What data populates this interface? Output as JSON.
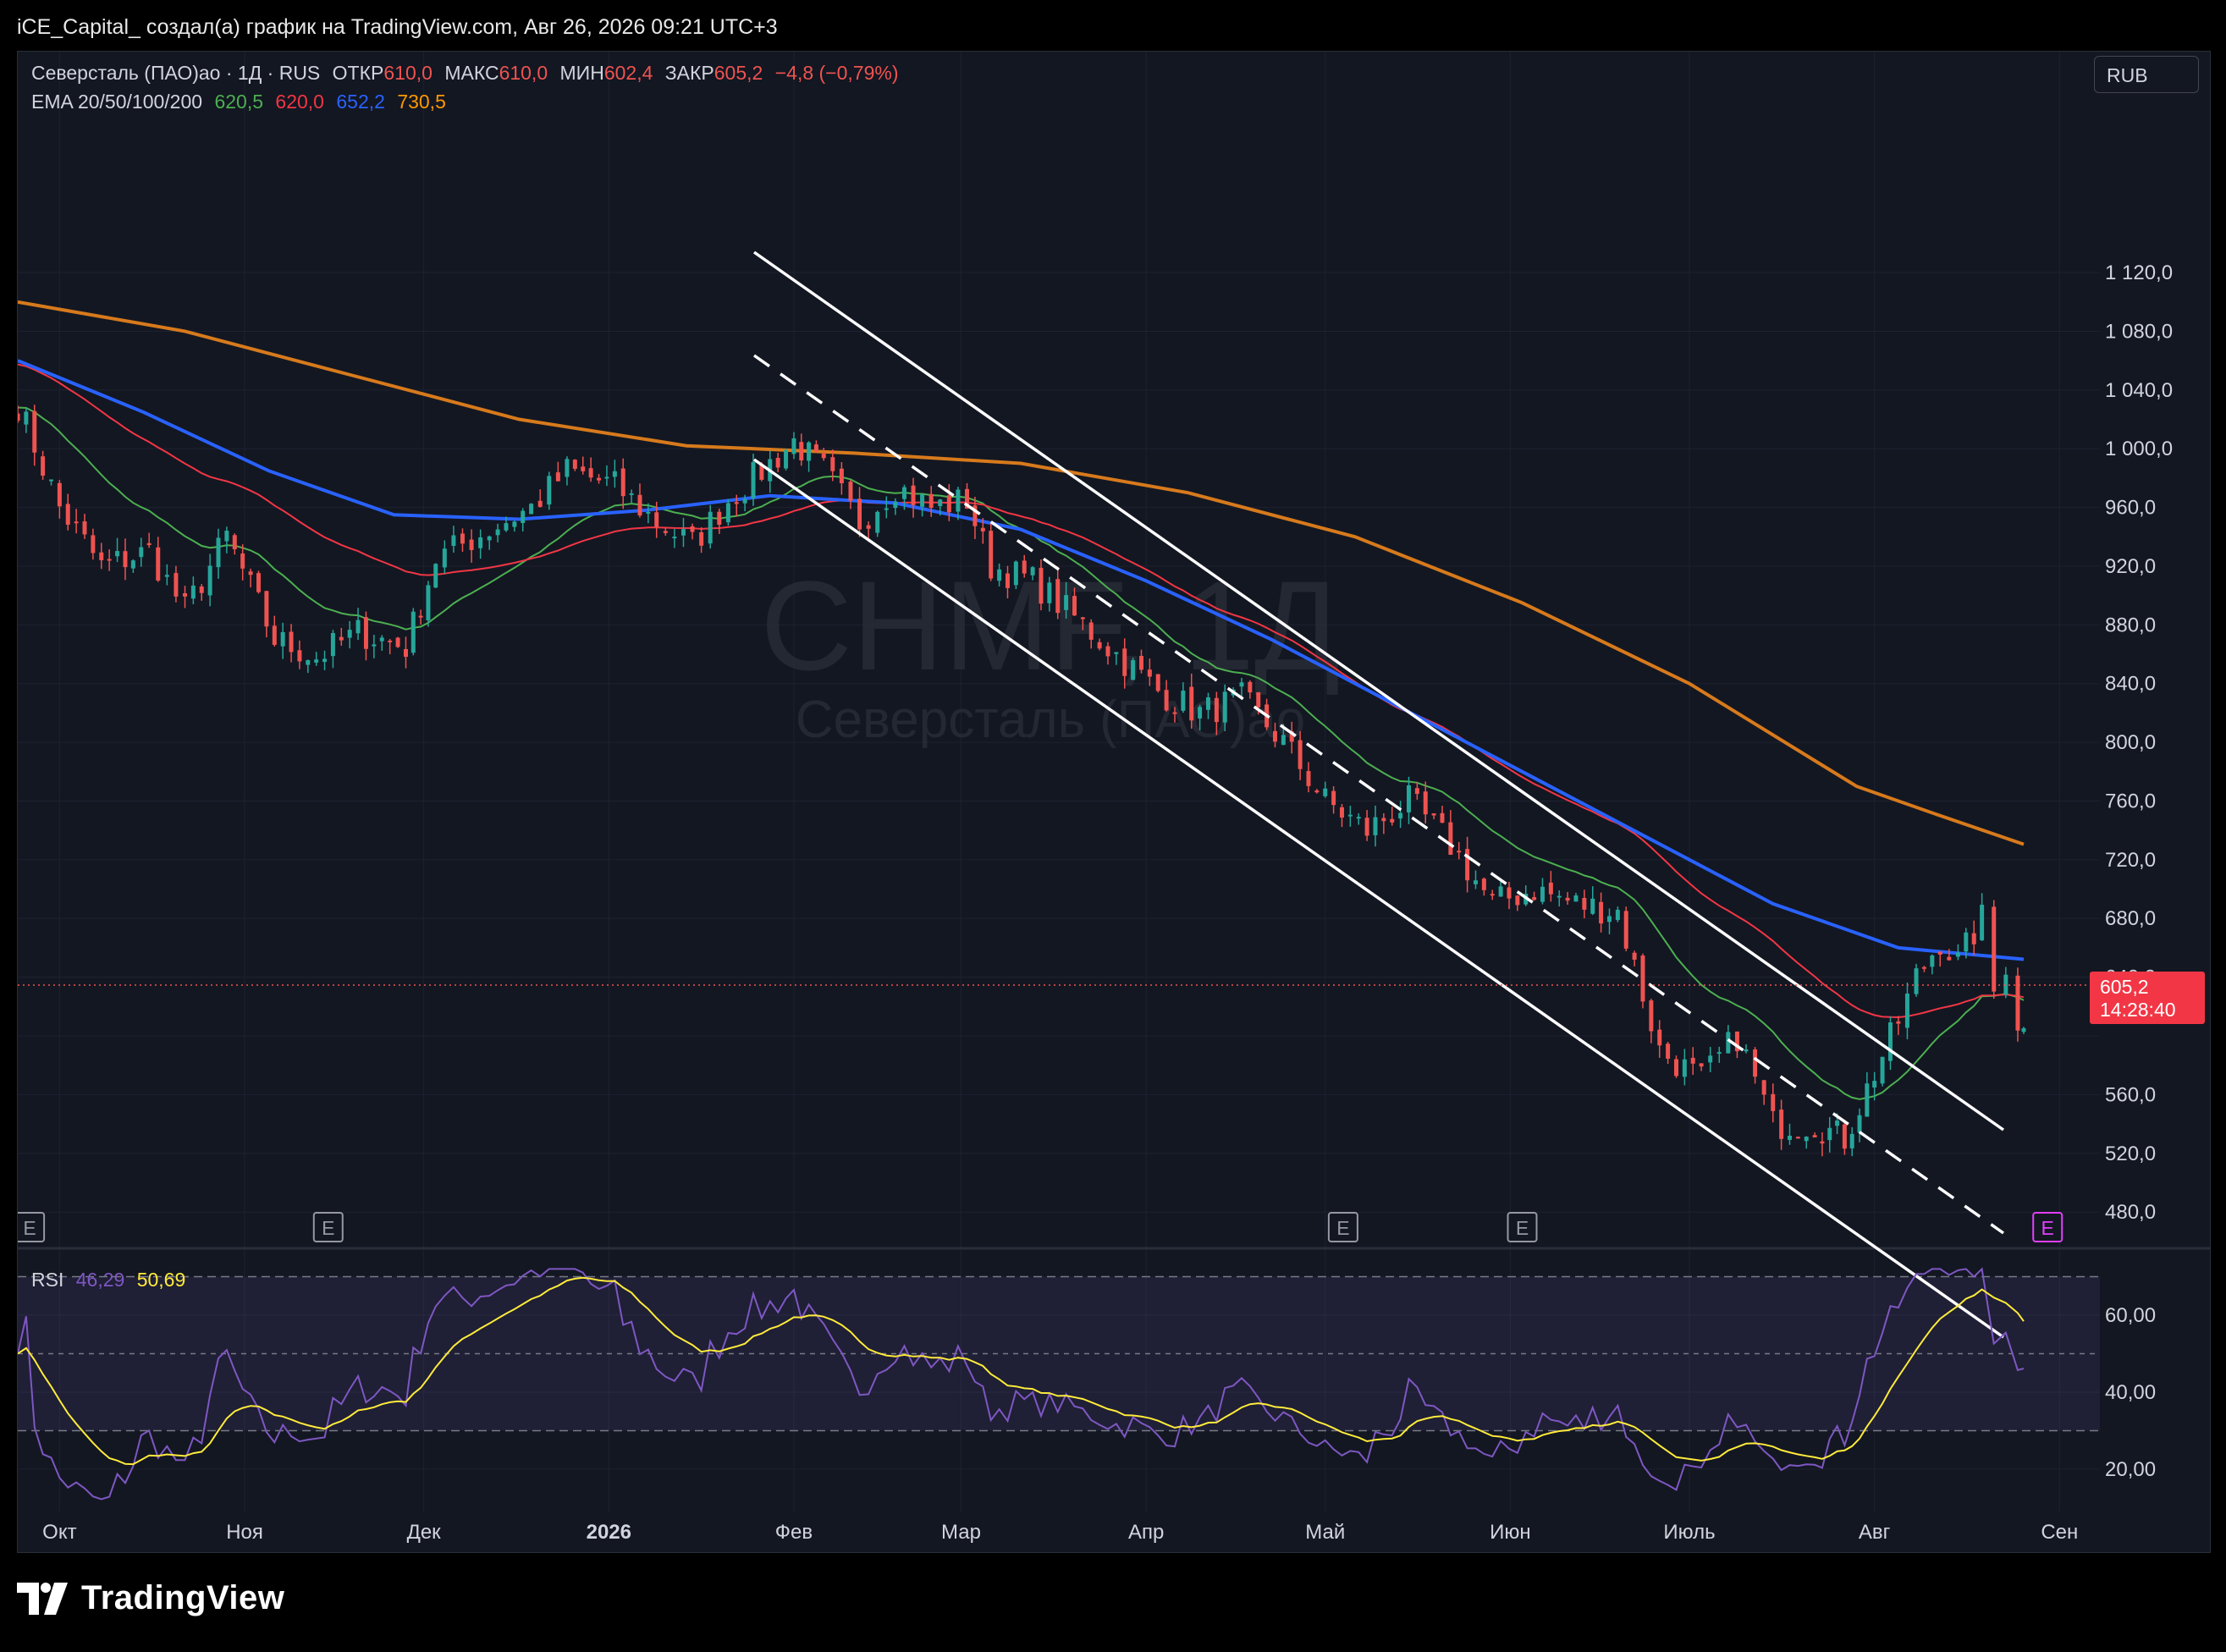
{
  "header": {
    "attribution": "iCE_Capital_ создал(а) график на TradingView.com, Авг 26, 2026 09:21 UTC+3"
  },
  "legend": {
    "symbol": "Северсталь (ПАО)ао · 1Д · RUS",
    "open_label": "ОТКР",
    "open": "610,0",
    "high_label": "МАКС",
    "high": "610,0",
    "low_label": "МИН",
    "low": "602,4",
    "close_label": "ЗАКР",
    "close": "605,2",
    "change": "−4,8 (−0,79%)",
    "ema_label": "EMA 20/50/100/200",
    "ema20": "620,5",
    "ema50": "620,0",
    "ema100": "652,2",
    "ema200": "730,5",
    "rsi_label": "RSI",
    "rsi": "46,29",
    "rsi_ma": "50,69"
  },
  "currency": "RUB",
  "watermark": {
    "ticker": "CHMF, 1Д",
    "name": "Северсталь (ПАО)ао"
  },
  "price_label": {
    "value": "605,2",
    "countdown": "14:28:40"
  },
  "earnings_marker": "E",
  "logo_text": "TradingView",
  "colors": {
    "background": "#131722",
    "up": "#26a69a",
    "down": "#ef5350",
    "ema20": "#4caf50",
    "ema50": "#f23645",
    "ema100": "#2962ff",
    "ema200": "#d77a1c",
    "rsi": "#7e57c2",
    "rsi_ma": "#ffeb3b",
    "channel": "#ffffff"
  },
  "chart_data": [
    {
      "type": "candlestick",
      "title": "Северсталь (ПАО)ао · 1Д · RUS",
      "y_axis_ticks": [
        "1 120,0",
        "1 080,0",
        "1 040,0",
        "1 000,0",
        "960,0",
        "920,0",
        "880,0",
        "840,0",
        "800,0",
        "760,0",
        "720,0",
        "680,0",
        "640,0",
        "600,0",
        "560,0",
        "520,0",
        "480,0"
      ],
      "x_axis_ticks": [
        "Окт",
        "Ноя",
        "Дек",
        "2026",
        "Фев",
        "Мар",
        "Апр",
        "Май",
        "Июн",
        "Июль",
        "Авг",
        "Сен"
      ],
      "ylim": [
        470,
        1130
      ],
      "price_path": [
        [
          "2025-09-24",
          1030
        ],
        [
          "2025-10-01",
          960
        ],
        [
          "2025-10-08",
          920
        ],
        [
          "2025-10-16",
          930
        ],
        [
          "2025-10-22",
          890
        ],
        [
          "2025-10-29",
          940
        ],
        [
          "2025-11-06",
          870
        ],
        [
          "2025-11-13",
          858
        ],
        [
          "2025-11-20",
          875
        ],
        [
          "2025-11-28",
          865
        ],
        [
          "2025-12-03",
          925
        ],
        [
          "2025-12-12",
          945
        ],
        [
          "2025-12-19",
          960
        ],
        [
          "2025-12-25",
          985
        ],
        [
          "2026-01-02",
          975
        ],
        [
          "2026-01-09",
          950
        ],
        [
          "2026-01-15",
          935
        ],
        [
          "2026-01-21",
          965
        ],
        [
          "2026-01-28",
          990
        ],
        [
          "2026-02-01",
          1005
        ],
        [
          "2026-02-06",
          985
        ],
        [
          "2026-02-12",
          950
        ],
        [
          "2026-02-18",
          975
        ],
        [
          "2026-02-24",
          960
        ],
        [
          "2026-03-02",
          965
        ],
        [
          "2026-03-06",
          920
        ],
        [
          "2026-03-13",
          910
        ],
        [
          "2026-03-20",
          885
        ],
        [
          "2026-03-27",
          860
        ],
        [
          "2026-04-03",
          835
        ],
        [
          "2026-04-10",
          820
        ],
        [
          "2026-04-17",
          830
        ],
        [
          "2026-04-24",
          800
        ],
        [
          "2026-05-01",
          760
        ],
        [
          "2026-05-08",
          740
        ],
        [
          "2026-05-15",
          760
        ],
        [
          "2026-05-22",
          730
        ],
        [
          "2026-05-29",
          690
        ],
        [
          "2026-06-05",
          700
        ],
        [
          "2026-06-12",
          690
        ],
        [
          "2026-06-19",
          685
        ],
        [
          "2026-06-26",
          590
        ],
        [
          "2026-07-03",
          570
        ],
        [
          "2026-07-09",
          600
        ],
        [
          "2026-07-15",
          540
        ],
        [
          "2026-07-22",
          540
        ],
        [
          "2026-07-27",
          530
        ],
        [
          "2026-08-01",
          575
        ],
        [
          "2026-08-05",
          610
        ],
        [
          "2026-08-08",
          640
        ],
        [
          "2026-08-12",
          665
        ],
        [
          "2026-08-15",
          650
        ],
        [
          "2026-08-19",
          680
        ],
        [
          "2026-08-21",
          630
        ],
        [
          "2026-08-23",
          650
        ],
        [
          "2026-08-25",
          610
        ],
        [
          "2026-08-26",
          605.2
        ]
      ],
      "last": {
        "open": 610.0,
        "high": 610.0,
        "low": 602.4,
        "close": 605.2,
        "change": -4.8,
        "change_pct": -0.79
      },
      "series": [
        {
          "name": "EMA 20",
          "last": 620.5
        },
        {
          "name": "EMA 50",
          "last": 620.0
        },
        {
          "name": "EMA 100",
          "points": [
            [
              "2025-09-24",
              1060
            ],
            [
              "2025-10-15",
              1025
            ],
            [
              "2025-11-05",
              985
            ],
            [
              "2025-11-26",
              955
            ],
            [
              "2025-12-17",
              952
            ],
            [
              "2026-01-07",
              958
            ],
            [
              "2026-01-28",
              968
            ],
            [
              "2026-02-18",
              963
            ],
            [
              "2026-03-11",
              945
            ],
            [
              "2026-04-01",
              910
            ],
            [
              "2026-04-22",
              870
            ],
            [
              "2026-05-13",
              825
            ],
            [
              "2026-06-03",
              780
            ],
            [
              "2026-06-24",
              735
            ],
            [
              "2026-07-15",
              690
            ],
            [
              "2026-08-05",
              660
            ],
            [
              "2026-08-26",
              652.2
            ]
          ]
        },
        {
          "name": "EMA 200",
          "points": [
            [
              "2025-09-24",
              1100
            ],
            [
              "2025-10-22",
              1080
            ],
            [
              "2025-11-19",
              1050
            ],
            [
              "2025-12-17",
              1020
            ],
            [
              "2026-01-14",
              1002
            ],
            [
              "2026-02-11",
              997
            ],
            [
              "2026-03-11",
              990
            ],
            [
              "2026-04-08",
              970
            ],
            [
              "2026-05-06",
              940
            ],
            [
              "2026-06-03",
              895
            ],
            [
              "2026-07-01",
              840
            ],
            [
              "2026-07-29",
              770
            ],
            [
              "2026-08-12",
              750
            ],
            [
              "2026-08-26",
              730.5
            ]
          ]
        }
      ]
    },
    {
      "type": "line",
      "title": "RSI",
      "y_axis_ticks": [
        "60,00",
        "40,00",
        "20,00"
      ],
      "ylim": [
        10,
        75
      ],
      "bands": [
        30,
        50,
        70
      ],
      "series": [
        {
          "name": "RSI",
          "last": 46.29
        },
        {
          "name": "RSI MA",
          "last": 50.69
        }
      ]
    }
  ]
}
